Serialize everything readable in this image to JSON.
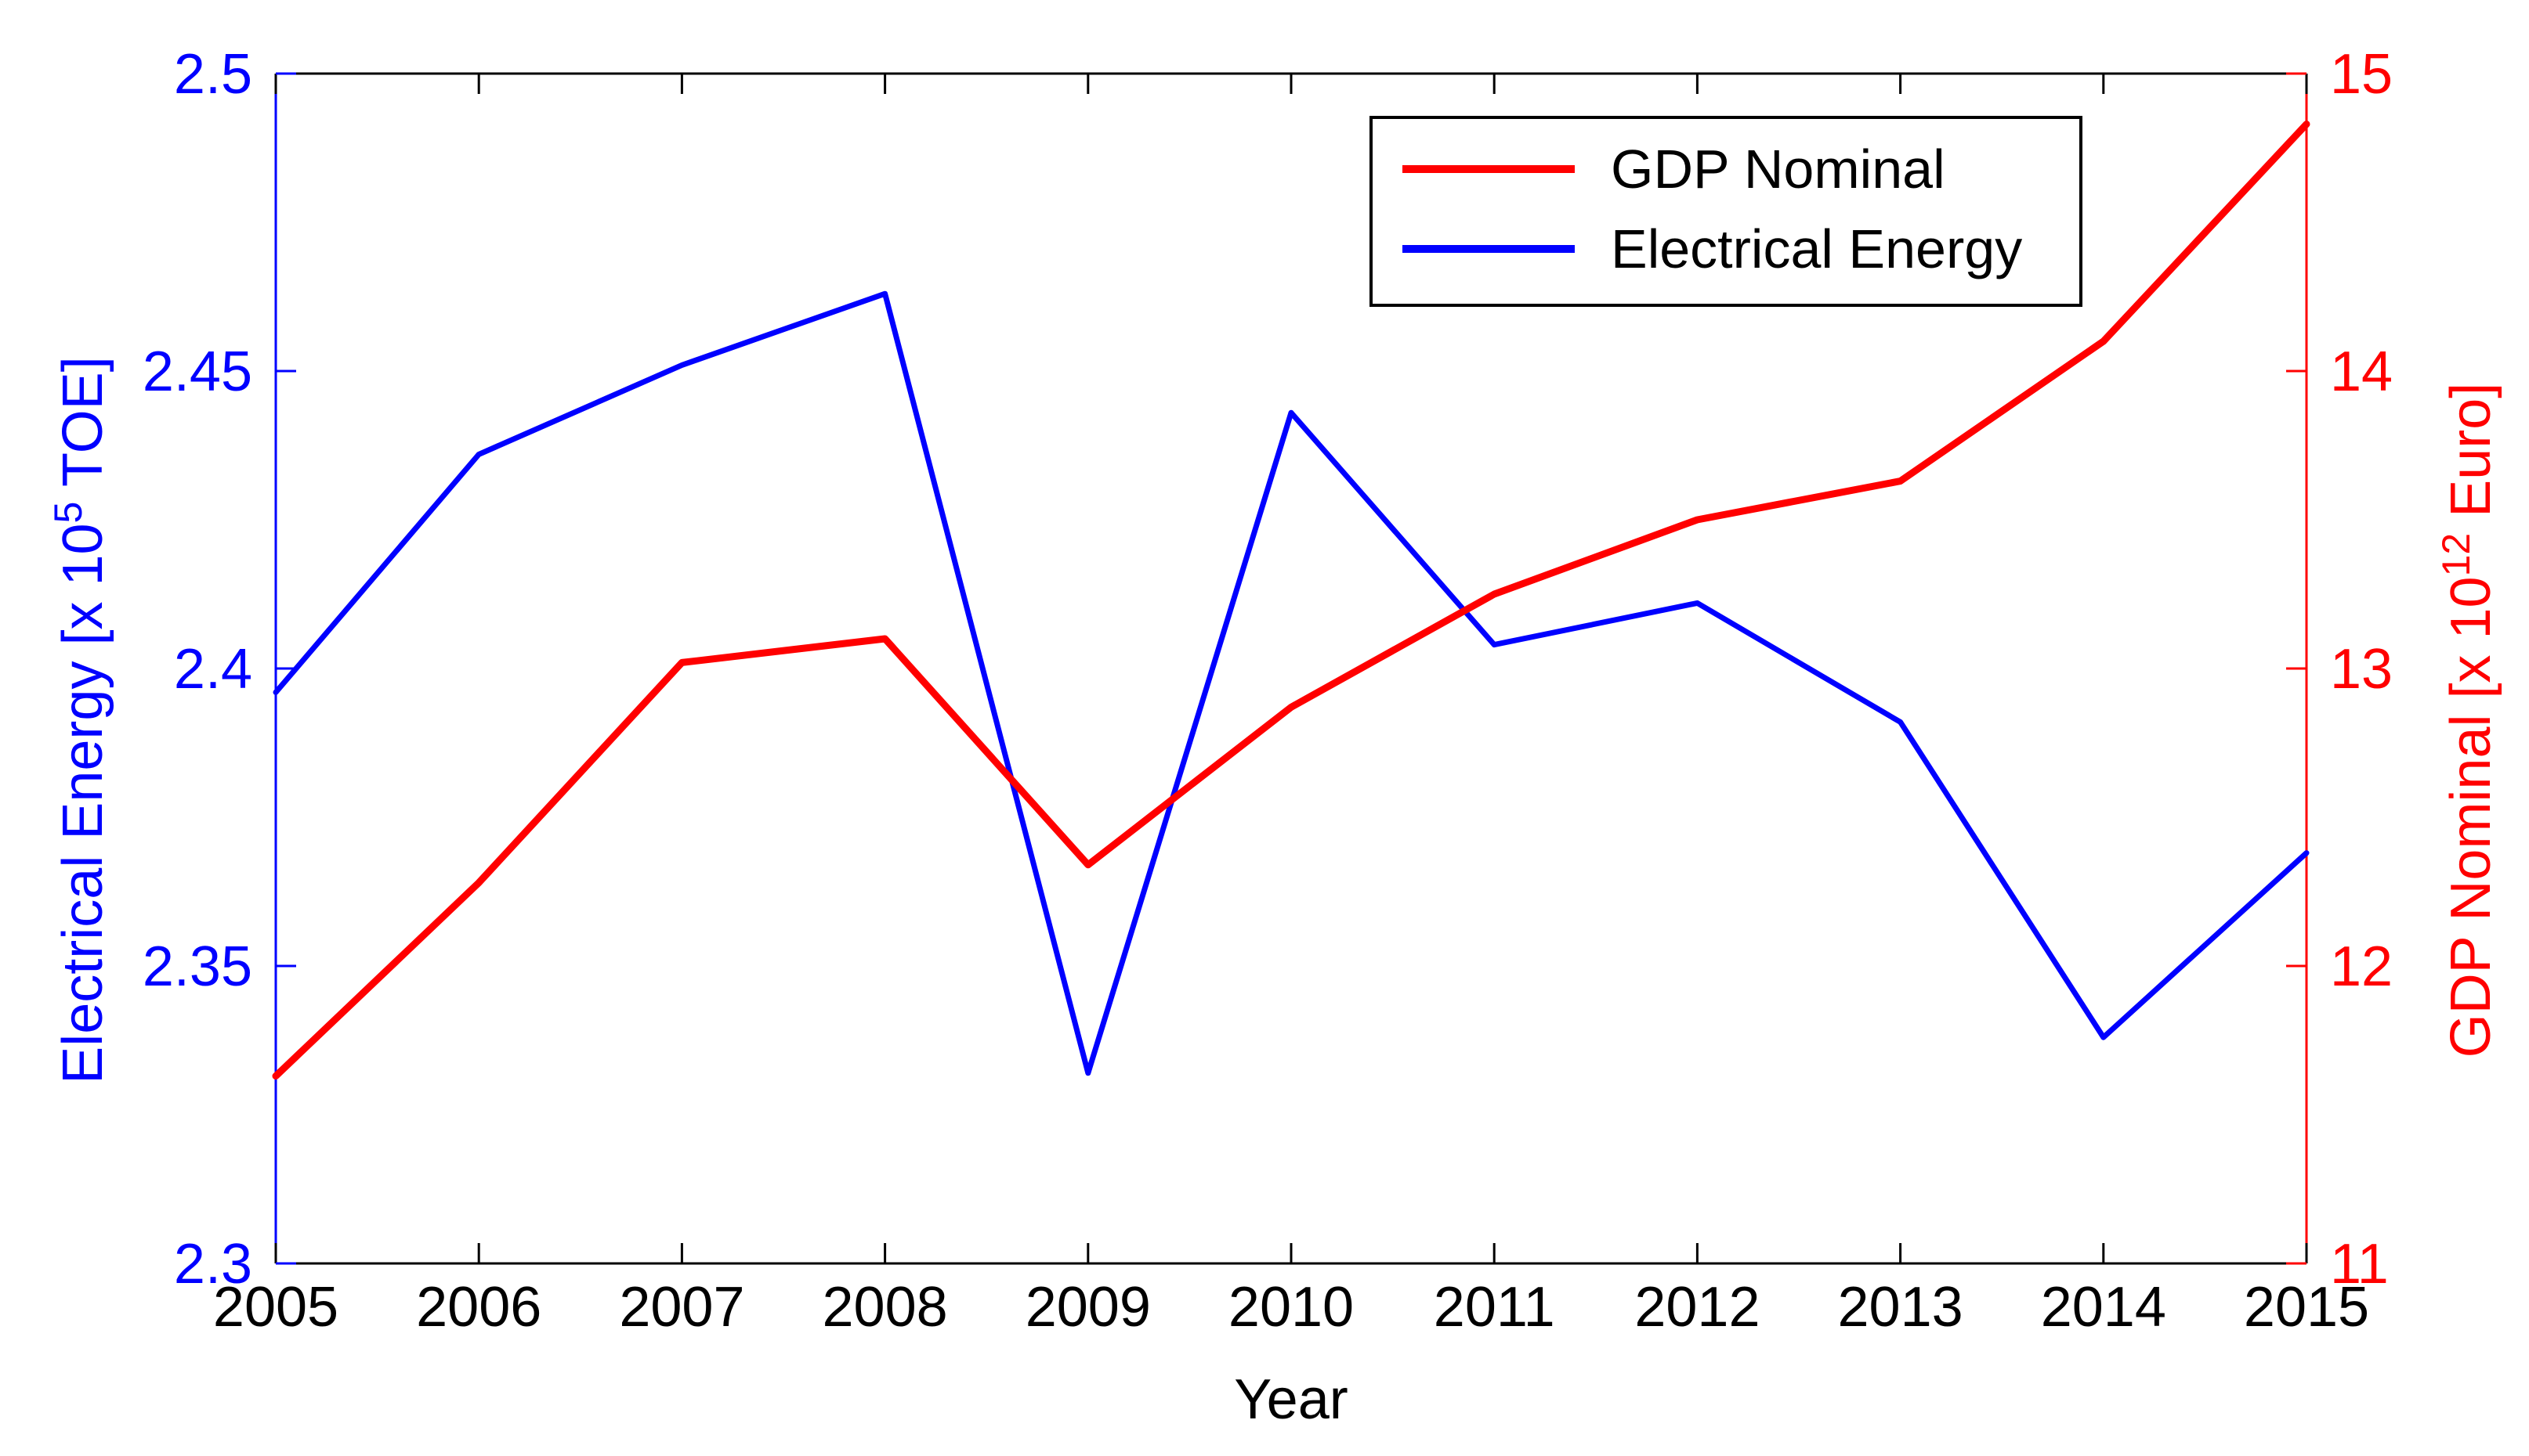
{
  "chart_data": {
    "type": "line",
    "title": "",
    "x": [
      2005,
      2006,
      2007,
      2008,
      2009,
      2010,
      2011,
      2012,
      2013,
      2014,
      2015
    ],
    "x_tick_labels": [
      "2005",
      "2006",
      "2007",
      "2008",
      "2009",
      "2010",
      "2011",
      "2012",
      "2013",
      "2014",
      "2015"
    ],
    "xlabel": "Year",
    "xlim": [
      2005,
      2015
    ],
    "y_left": {
      "label_main": "Electrical Energy [x 10",
      "label_sup": "5",
      "label_end": " TOE]",
      "lim": [
        2.3,
        2.5
      ],
      "ticks": [
        2.3,
        2.35,
        2.4,
        2.45,
        2.5
      ],
      "tick_labels": [
        "2.3",
        "2.35",
        "2.4",
        "2.45",
        "2.5"
      ],
      "color": "#0000ff"
    },
    "y_right": {
      "label_main": "GDP Nominal [x 10",
      "label_sup": "12",
      "label_end": " Euro]",
      "lim": [
        11,
        15
      ],
      "ticks": [
        11,
        12,
        13,
        14,
        15
      ],
      "tick_labels": [
        "11",
        "12",
        "13",
        "14",
        "15"
      ],
      "color": "#ff0000"
    },
    "series": [
      {
        "name": "Electrical Energy",
        "axis": "left",
        "color": "#0000ff",
        "values": [
          2.396,
          2.436,
          2.451,
          2.463,
          2.332,
          2.443,
          2.404,
          2.411,
          2.391,
          2.338,
          2.369
        ]
      },
      {
        "name": "GDP Nominal",
        "axis": "right",
        "color": "#ff0000",
        "values": [
          11.63,
          12.28,
          13.02,
          13.1,
          12.34,
          12.87,
          13.25,
          13.5,
          13.63,
          14.1,
          14.83
        ]
      }
    ],
    "legend": {
      "position": "top-right",
      "entries": [
        {
          "label": "GDP Nominal",
          "color": "#ff0000"
        },
        {
          "label": "Electrical Energy",
          "color": "#0000ff"
        }
      ]
    },
    "grid": false
  }
}
